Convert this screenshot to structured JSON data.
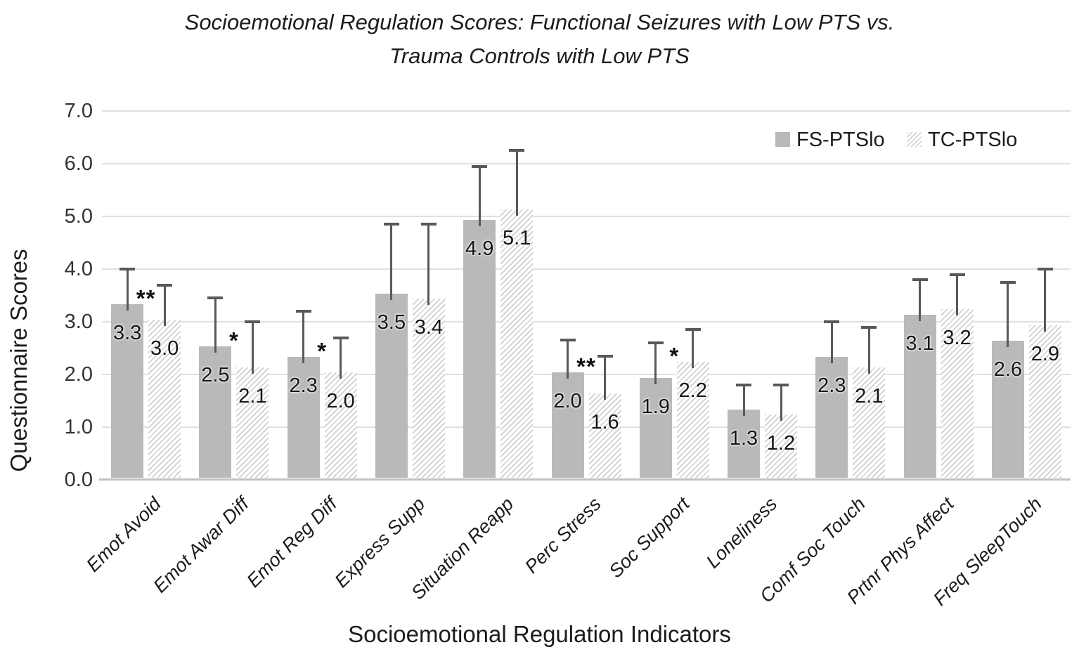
{
  "title": {
    "line1": "Socioemotional Regulation Scores: Functional Seizures with Low PTS vs.",
    "line2": "Trauma Controls with Low PTS"
  },
  "chart_data": {
    "type": "bar",
    "title": "Socioemotional Regulation Scores: Functional Seizures with Low PTS vs. Trauma Controls with Low PTS",
    "xlabel": "Socioemotional Regulation Indicators",
    "ylabel": "Questionnaire Scores",
    "ylim": [
      0.0,
      7.0
    ],
    "ytick_step": 1.0,
    "ytick_labels": [
      "0.0",
      "1.0",
      "2.0",
      "3.0",
      "4.0",
      "5.0",
      "6.0",
      "7.0"
    ],
    "grid": true,
    "legend_position": "top-right",
    "categories": [
      "Emot Avoid",
      "Emot Awar Diff",
      "Emot Reg Diff",
      "Express Supp",
      "Situation Reapp",
      "Perc Stress",
      "Soc Support",
      "Loneliness",
      "Comf Soc Touch",
      "Prtnr Phys Affect",
      "Freq SleepTouch"
    ],
    "series": [
      {
        "name": "FS-PTSlo",
        "pattern": "solid",
        "values": [
          3.3,
          2.5,
          2.3,
          3.5,
          4.9,
          2.0,
          1.9,
          1.3,
          2.3,
          3.1,
          2.6
        ],
        "error_bar_top": [
          4.0,
          3.45,
          3.2,
          4.85,
          5.95,
          2.65,
          2.6,
          1.8,
          3.0,
          3.8,
          3.75
        ]
      },
      {
        "name": "TC-PTSlo",
        "pattern": "hatched",
        "values": [
          3.0,
          2.1,
          2.0,
          3.4,
          5.1,
          1.6,
          2.2,
          1.2,
          2.1,
          3.2,
          2.9
        ],
        "error_bar_top": [
          3.7,
          3.0,
          2.7,
          4.85,
          6.25,
          2.35,
          2.85,
          1.8,
          2.9,
          3.9,
          4.0
        ]
      }
    ],
    "significance_markers": [
      "**",
      "*",
      "*",
      "",
      "",
      "**",
      "*",
      "",
      "",
      "",
      ""
    ],
    "value_label_format": "one-decimal"
  },
  "colors": {
    "bar_solid": "#b9b9b9",
    "hatch_line": "#cfcfcf",
    "error_bar": "#595959",
    "gridline": "#e0e0e0",
    "axis_line": "#c2c2c2",
    "text": "#1a1a1a"
  }
}
